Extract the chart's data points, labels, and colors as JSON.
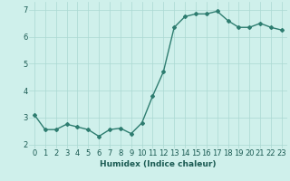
{
  "x": [
    0,
    1,
    2,
    3,
    4,
    5,
    6,
    7,
    8,
    9,
    10,
    11,
    12,
    13,
    14,
    15,
    16,
    17,
    18,
    19,
    20,
    21,
    22,
    23
  ],
  "y": [
    3.1,
    2.55,
    2.55,
    2.75,
    2.65,
    2.55,
    2.3,
    2.55,
    2.6,
    2.4,
    2.8,
    3.8,
    4.7,
    6.35,
    6.75,
    6.85,
    6.85,
    6.95,
    6.6,
    6.35,
    6.35,
    6.5,
    6.35,
    6.25
  ],
  "line_color": "#2e7d70",
  "marker": "D",
  "marker_size": 2.0,
  "linewidth": 1.0,
  "background_color": "#cff0eb",
  "grid_color": "#aad8d2",
  "xlabel": "Humidex (Indice chaleur)",
  "xlim": [
    -0.5,
    23.5
  ],
  "ylim": [
    1.85,
    7.3
  ],
  "yticks": [
    2,
    3,
    4,
    5,
    6,
    7
  ],
  "xticks": [
    0,
    1,
    2,
    3,
    4,
    5,
    6,
    7,
    8,
    9,
    10,
    11,
    12,
    13,
    14,
    15,
    16,
    17,
    18,
    19,
    20,
    21,
    22,
    23
  ],
  "xtick_labels": [
    "0",
    "1",
    "2",
    "3",
    "4",
    "5",
    "6",
    "7",
    "8",
    "9",
    "10",
    "11",
    "12",
    "13",
    "14",
    "15",
    "16",
    "17",
    "18",
    "19",
    "20",
    "21",
    "22",
    "23"
  ],
  "xlabel_fontsize": 6.5,
  "tick_fontsize": 6.0,
  "xlabel_color": "#1a5a52",
  "tick_color": "#1a5a52"
}
